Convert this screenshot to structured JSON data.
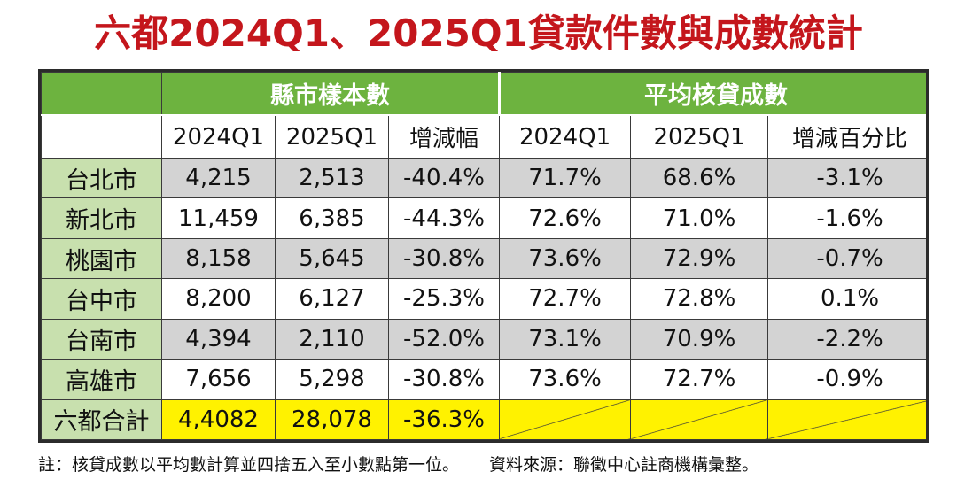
{
  "title": "六都2024Q1、2025Q1貸款件數與成數統計",
  "chart_data": {
    "type": "table",
    "group_headers": [
      "縣市樣本數",
      "平均核貸成數"
    ],
    "columns": [
      "2024Q1",
      "2025Q1",
      "增減幅",
      "2024Q1",
      "2025Q1",
      "增減百分比"
    ],
    "rows": [
      {
        "city": "台北市",
        "cells": [
          "4,215",
          "2,513",
          "-40.4%",
          "71.7%",
          "68.6%",
          "-3.1%"
        ]
      },
      {
        "city": "新北市",
        "cells": [
          "11,459",
          "6,385",
          "-44.3%",
          "72.6%",
          "71.0%",
          "-1.6%"
        ]
      },
      {
        "city": "桃園市",
        "cells": [
          "8,158",
          "5,645",
          "-30.8%",
          "73.6%",
          "72.9%",
          "-0.7%"
        ]
      },
      {
        "city": "台中市",
        "cells": [
          "8,200",
          "6,127",
          "-25.3%",
          "72.7%",
          "72.8%",
          "0.1%"
        ]
      },
      {
        "city": "台南市",
        "cells": [
          "4,394",
          "2,110",
          "-52.0%",
          "73.1%",
          "70.9%",
          "-2.2%"
        ]
      },
      {
        "city": "高雄市",
        "cells": [
          "7,656",
          "5,298",
          "-30.8%",
          "73.6%",
          "72.7%",
          "-0.9%"
        ]
      }
    ],
    "total": {
      "city": "六都合計",
      "cells": [
        "4,4082",
        "28,078",
        "-36.3%",
        "",
        "",
        ""
      ]
    }
  },
  "colors": {
    "title": "#c4161c",
    "group_header_bg": "#6db33f",
    "city_bg": "#c8e0ae",
    "stripe_gray": "#d3d3d3",
    "total_bg": "#fff200"
  },
  "note": {
    "text": "註：核貸成數以平均數計算並四捨五入至小數點第一位。",
    "source": "資料來源：聯徵中心註商機構彙整。"
  }
}
